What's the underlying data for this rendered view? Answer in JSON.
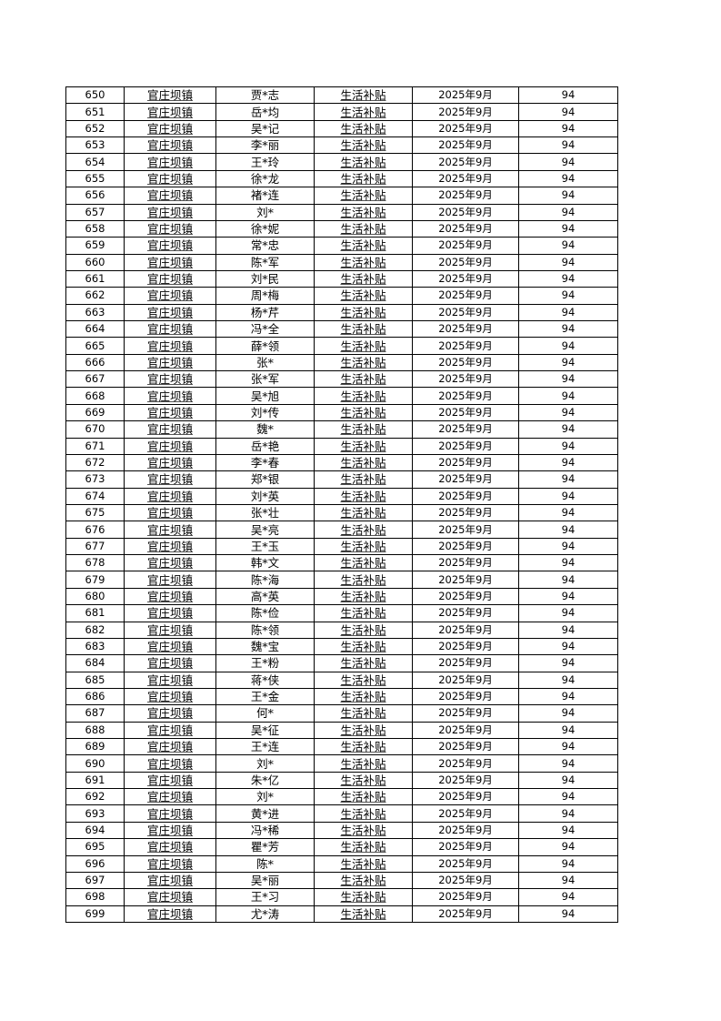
{
  "table": {
    "rows": [
      [
        "650",
        "官庄坝镇",
        "贾*志",
        "生活补贴",
        "2025年9月",
        "94"
      ],
      [
        "651",
        "官庄坝镇",
        "岳*均",
        "生活补贴",
        "2025年9月",
        "94"
      ],
      [
        "652",
        "官庄坝镇",
        "吴*记",
        "生活补贴",
        "2025年9月",
        "94"
      ],
      [
        "653",
        "官庄坝镇",
        "李*丽",
        "生活补贴",
        "2025年9月",
        "94"
      ],
      [
        "654",
        "官庄坝镇",
        "王*玲",
        "生活补贴",
        "2025年9月",
        "94"
      ],
      [
        "655",
        "官庄坝镇",
        "徐*龙",
        "生活补贴",
        "2025年9月",
        "94"
      ],
      [
        "656",
        "官庄坝镇",
        "褚*连",
        "生活补贴",
        "2025年9月",
        "94"
      ],
      [
        "657",
        "官庄坝镇",
        "刘*",
        "生活补贴",
        "2025年9月",
        "94"
      ],
      [
        "658",
        "官庄坝镇",
        "徐*妮",
        "生活补贴",
        "2025年9月",
        "94"
      ],
      [
        "659",
        "官庄坝镇",
        "常*忠",
        "生活补贴",
        "2025年9月",
        "94"
      ],
      [
        "660",
        "官庄坝镇",
        "陈*军",
        "生活补贴",
        "2025年9月",
        "94"
      ],
      [
        "661",
        "官庄坝镇",
        "刘*民",
        "生活补贴",
        "2025年9月",
        "94"
      ],
      [
        "662",
        "官庄坝镇",
        "周*梅",
        "生活补贴",
        "2025年9月",
        "94"
      ],
      [
        "663",
        "官庄坝镇",
        "杨*芹",
        "生活补贴",
        "2025年9月",
        "94"
      ],
      [
        "664",
        "官庄坝镇",
        "冯*全",
        "生活补贴",
        "2025年9月",
        "94"
      ],
      [
        "665",
        "官庄坝镇",
        "薛*领",
        "生活补贴",
        "2025年9月",
        "94"
      ],
      [
        "666",
        "官庄坝镇",
        "张*",
        "生活补贴",
        "2025年9月",
        "94"
      ],
      [
        "667",
        "官庄坝镇",
        "张*军",
        "生活补贴",
        "2025年9月",
        "94"
      ],
      [
        "668",
        "官庄坝镇",
        "吴*旭",
        "生活补贴",
        "2025年9月",
        "94"
      ],
      [
        "669",
        "官庄坝镇",
        "刘*传",
        "生活补贴",
        "2025年9月",
        "94"
      ],
      [
        "670",
        "官庄坝镇",
        "魏*",
        "生活补贴",
        "2025年9月",
        "94"
      ],
      [
        "671",
        "官庄坝镇",
        "岳*艳",
        "生活补贴",
        "2025年9月",
        "94"
      ],
      [
        "672",
        "官庄坝镇",
        "李*春",
        "生活补贴",
        "2025年9月",
        "94"
      ],
      [
        "673",
        "官庄坝镇",
        "郑*银",
        "生活补贴",
        "2025年9月",
        "94"
      ],
      [
        "674",
        "官庄坝镇",
        "刘*英",
        "生活补贴",
        "2025年9月",
        "94"
      ],
      [
        "675",
        "官庄坝镇",
        "张*壮",
        "生活补贴",
        "2025年9月",
        "94"
      ],
      [
        "676",
        "官庄坝镇",
        "吴*亮",
        "生活补贴",
        "2025年9月",
        "94"
      ],
      [
        "677",
        "官庄坝镇",
        "王*玉",
        "生活补贴",
        "2025年9月",
        "94"
      ],
      [
        "678",
        "官庄坝镇",
        "韩*文",
        "生活补贴",
        "2025年9月",
        "94"
      ],
      [
        "679",
        "官庄坝镇",
        "陈*海",
        "生活补贴",
        "2025年9月",
        "94"
      ],
      [
        "680",
        "官庄坝镇",
        "高*英",
        "生活补贴",
        "2025年9月",
        "94"
      ],
      [
        "681",
        "官庄坝镇",
        "陈*俭",
        "生活补贴",
        "2025年9月",
        "94"
      ],
      [
        "682",
        "官庄坝镇",
        "陈*领",
        "生活补贴",
        "2025年9月",
        "94"
      ],
      [
        "683",
        "官庄坝镇",
        "魏*宝",
        "生活补贴",
        "2025年9月",
        "94"
      ],
      [
        "684",
        "官庄坝镇",
        "王*粉",
        "生活补贴",
        "2025年9月",
        "94"
      ],
      [
        "685",
        "官庄坝镇",
        "蒋*侠",
        "生活补贴",
        "2025年9月",
        "94"
      ],
      [
        "686",
        "官庄坝镇",
        "王*金",
        "生活补贴",
        "2025年9月",
        "94"
      ],
      [
        "687",
        "官庄坝镇",
        "何*",
        "生活补贴",
        "2025年9月",
        "94"
      ],
      [
        "688",
        "官庄坝镇",
        "吴*征",
        "生活补贴",
        "2025年9月",
        "94"
      ],
      [
        "689",
        "官庄坝镇",
        "王*连",
        "生活补贴",
        "2025年9月",
        "94"
      ],
      [
        "690",
        "官庄坝镇",
        "刘*",
        "生活补贴",
        "2025年9月",
        "94"
      ],
      [
        "691",
        "官庄坝镇",
        "朱*亿",
        "生活补贴",
        "2025年9月",
        "94"
      ],
      [
        "692",
        "官庄坝镇",
        "刘*",
        "生活补贴",
        "2025年9月",
        "94"
      ],
      [
        "693",
        "官庄坝镇",
        "黄*进",
        "生活补贴",
        "2025年9月",
        "94"
      ],
      [
        "694",
        "官庄坝镇",
        "冯*稀",
        "生活补贴",
        "2025年9月",
        "94"
      ],
      [
        "695",
        "官庄坝镇",
        "瞿*芳",
        "生活补贴",
        "2025年9月",
        "94"
      ],
      [
        "696",
        "官庄坝镇",
        "陈*",
        "生活补贴",
        "2025年9月",
        "94"
      ],
      [
        "697",
        "官庄坝镇",
        "吴*丽",
        "生活补贴",
        "2025年9月",
        "94"
      ],
      [
        "698",
        "官庄坝镇",
        "王*习",
        "生活补贴",
        "2025年9月",
        "94"
      ],
      [
        "699",
        "官庄坝镇",
        "尤*涛",
        "生活补贴",
        "2025年9月",
        "94"
      ]
    ]
  }
}
